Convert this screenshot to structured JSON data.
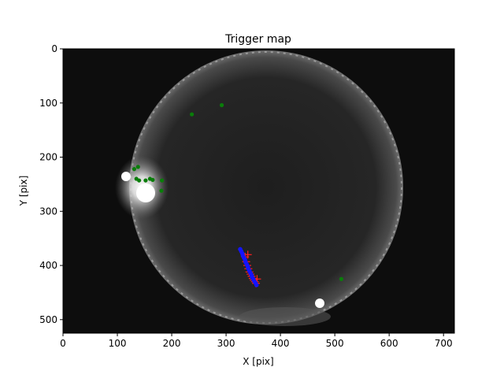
{
  "chart_data": {
    "type": "scatter",
    "title": "Trigger map",
    "xlabel": "X [pix]",
    "ylabel": "Y [pix]",
    "xlim": [
      0,
      720
    ],
    "ylim": [
      0,
      525
    ],
    "y_inverted": true,
    "grid": false,
    "background": "all-sky camera image (fisheye, night sky)",
    "xticks": [
      0,
      100,
      200,
      300,
      400,
      500,
      600,
      700
    ],
    "yticks": [
      0,
      100,
      200,
      300,
      400,
      500
    ],
    "colors": {
      "green": "#0a7d0a",
      "red": "#ff2020",
      "blue": "#1414ff"
    },
    "series": [
      {
        "color": "green",
        "marker": "dot",
        "points": [
          [
            237,
            121
          ],
          [
            292,
            104
          ],
          [
            131,
            222
          ],
          [
            138,
            218
          ],
          [
            135,
            240
          ],
          [
            140,
            243
          ],
          [
            152,
            243
          ],
          [
            160,
            240
          ],
          [
            165,
            242
          ],
          [
            182,
            243
          ],
          [
            181,
            262
          ],
          [
            512,
            425
          ]
        ]
      },
      {
        "color": "red",
        "marker": "cross",
        "points": [
          [
            335,
            384
          ],
          [
            337,
            393
          ],
          [
            339,
            400
          ],
          [
            341,
            406
          ],
          [
            343,
            412
          ],
          [
            345,
            416
          ],
          [
            347,
            420
          ],
          [
            349,
            424
          ],
          [
            351,
            427
          ],
          [
            353,
            430
          ],
          [
            355,
            433
          ],
          [
            357,
            425
          ],
          [
            340,
            380
          ]
        ]
      },
      {
        "color": "blue",
        "marker": "dot",
        "points": [
          [
            326,
            370
          ],
          [
            328,
            374
          ],
          [
            330,
            378
          ],
          [
            331,
            382
          ],
          [
            333,
            386
          ],
          [
            335,
            390
          ],
          [
            336,
            394
          ],
          [
            338,
            398
          ],
          [
            340,
            402
          ],
          [
            341,
            406
          ],
          [
            343,
            410
          ],
          [
            345,
            414
          ],
          [
            347,
            418
          ],
          [
            348,
            422
          ],
          [
            350,
            425
          ],
          [
            352,
            429
          ],
          [
            354,
            432
          ],
          [
            356,
            436
          ]
        ]
      }
    ]
  }
}
